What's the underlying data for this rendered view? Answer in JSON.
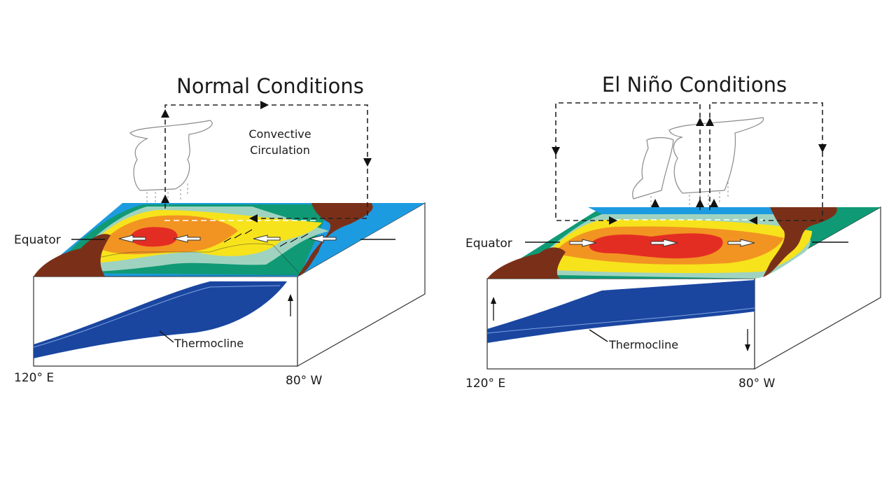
{
  "normal": {
    "title": "Normal Conditions",
    "circulation_label_line1": "Convective",
    "circulation_label_line2": "Circulation",
    "equator_label": "Equator",
    "thermocline_label": "Thermocline",
    "west_label": "120° E",
    "east_label": "80° W"
  },
  "elnino": {
    "title": "El Niño Conditions",
    "equator_label": "Equator",
    "thermocline_label": "Thermocline",
    "west_label": "120° E",
    "east_label": "80° W"
  },
  "colors": {
    "warm_core": "#e32d23",
    "warm": "#f29422",
    "mid_warm": "#f7e31c",
    "cool": "#9fd3c0",
    "cold": "#0f9a75",
    "coldest": "#1d9be0",
    "land": "#7a3018",
    "thermocline": "#1a46a0"
  }
}
